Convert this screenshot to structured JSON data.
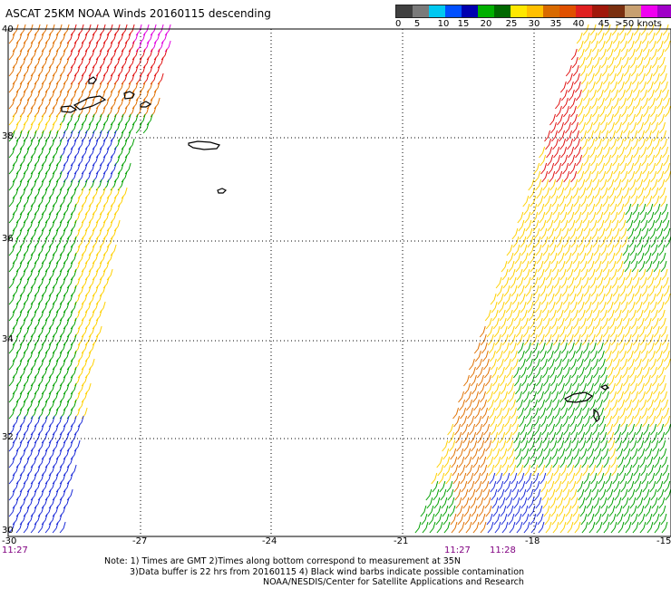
{
  "title": "ASCAT 25KM NOAA Winds 20160115 descending",
  "legend": {
    "colors": [
      "#404040",
      "#7a7a7a",
      "#00c8f0",
      "#0050ff",
      "#0000b0",
      "#00b000",
      "#006800",
      "#ffe800",
      "#ffc000",
      "#d86a00",
      "#e05000",
      "#e02020",
      "#a0180a",
      "#7a3010",
      "#c8a070",
      "#f000f0",
      "#a000c8",
      "#5a0090"
    ],
    "labels": [
      "0",
      "5",
      "10",
      "15",
      "20",
      "25",
      "30",
      "35",
      "40",
      "45",
      ">50 knots"
    ]
  },
  "map": {
    "lat_labels": [
      "40",
      "38",
      "36",
      "34",
      "32",
      "30"
    ],
    "lon_labels": [
      "-30",
      "-27",
      "-24",
      "-21",
      "-18",
      "-15"
    ],
    "time_labels": [
      "11:27",
      "11:27",
      "11:28"
    ],
    "time_color": "#800080"
  },
  "notes": {
    "line1": "Note: 1) Times are GMT 2)Times along bottom correspond to measurement at 35N",
    "line2": "3)Data buffer is 22 hrs from 20160115 4) Black wind barbs indicate possible contamination",
    "line3": "NOAA/NESDIS/Center for Satellite Applications and Research"
  }
}
